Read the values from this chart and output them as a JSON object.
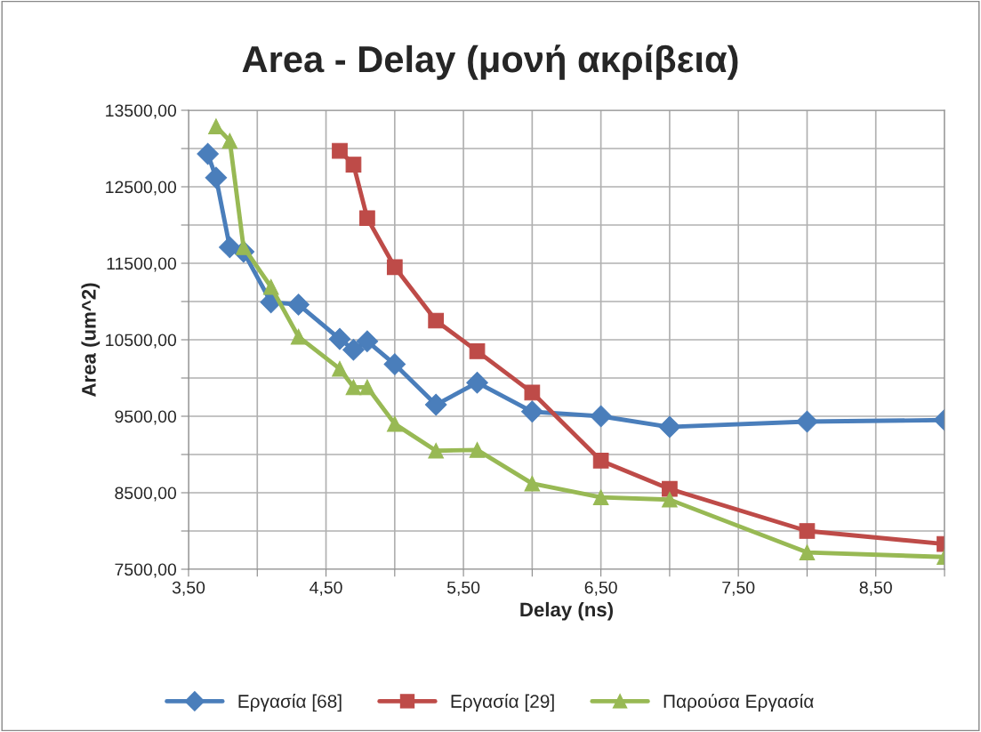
{
  "chart_data": {
    "type": "line",
    "title": "Area - Delay (μονή ακρίβεια)",
    "xlabel": "Delay (ns)",
    "ylabel": "Area (um^2)",
    "xlim": [
      3.5,
      9.0
    ],
    "ylim": [
      7500,
      13500
    ],
    "xticks": [
      {
        "value": 3.5,
        "label": "3,50"
      },
      {
        "value": 4.0,
        "label": null
      },
      {
        "value": 4.5,
        "label": "4,50"
      },
      {
        "value": 5.0,
        "label": null
      },
      {
        "value": 5.5,
        "label": "5,50"
      },
      {
        "value": 6.0,
        "label": null
      },
      {
        "value": 6.5,
        "label": "6,50"
      },
      {
        "value": 7.0,
        "label": null
      },
      {
        "value": 7.5,
        "label": "7,50"
      },
      {
        "value": 8.0,
        "label": null
      },
      {
        "value": 8.5,
        "label": "8,50"
      },
      {
        "value": 9.0,
        "label": null
      }
    ],
    "yticks": [
      {
        "value": 7500,
        "label": "7500,00"
      },
      {
        "value": 8000,
        "label": null
      },
      {
        "value": 8500,
        "label": "8500,00"
      },
      {
        "value": 9000,
        "label": null
      },
      {
        "value": 9500,
        "label": "9500,00"
      },
      {
        "value": 10000,
        "label": null
      },
      {
        "value": 10500,
        "label": "10500,00"
      },
      {
        "value": 11000,
        "label": null
      },
      {
        "value": 11500,
        "label": "11500,00"
      },
      {
        "value": 12000,
        "label": null
      },
      {
        "value": 12500,
        "label": "12500,00"
      },
      {
        "value": 13000,
        "label": null
      },
      {
        "value": 13500,
        "label": "13500,00"
      }
    ],
    "grid": true,
    "legend": "bottom",
    "line_style": "solid",
    "series": [
      {
        "name": "Εργασία [68]",
        "color": "#4a7ebb",
        "marker": "diamond",
        "x": [
          3.64,
          3.7,
          3.8,
          3.9,
          4.1,
          4.3,
          4.6,
          4.7,
          4.8,
          5.0,
          5.3,
          5.6,
          6.0,
          6.5,
          7.0,
          8.0,
          9.0
        ],
        "values": [
          12930,
          12620,
          11710,
          11650,
          10990,
          10960,
          10510,
          10370,
          10480,
          10180,
          9650,
          9940,
          9560,
          9500,
          9360,
          9430,
          9450
        ]
      },
      {
        "name": "Εργασία [29]",
        "color": "#be4b48",
        "marker": "square",
        "x": [
          4.6,
          4.7,
          4.8,
          5.0,
          5.3,
          5.6,
          6.0,
          6.5,
          7.0,
          8.0,
          9.0
        ],
        "values": [
          12970,
          12790,
          12090,
          11450,
          10750,
          10350,
          9810,
          8920,
          8550,
          8000,
          7830
        ]
      },
      {
        "name": "Παρούσα Εργασία",
        "color": "#98b954",
        "marker": "triangle",
        "x": [
          3.7,
          3.8,
          3.9,
          4.1,
          4.3,
          4.6,
          4.7,
          4.8,
          5.0,
          5.3,
          5.6,
          6.0,
          6.5,
          7.0,
          8.0,
          9.0
        ],
        "values": [
          13290,
          13100,
          11710,
          11190,
          10540,
          10120,
          9880,
          9880,
          9400,
          9050,
          9060,
          8620,
          8440,
          8410,
          7720,
          7660
        ]
      }
    ]
  }
}
